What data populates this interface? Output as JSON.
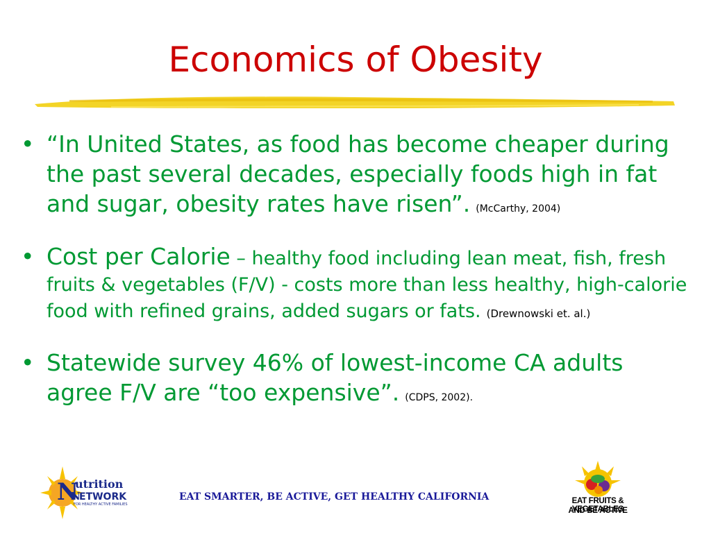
{
  "slide": {
    "title": "Economics of Obesity",
    "bullets": [
      {
        "text": "“In United States, as food has become cheaper during the past several decades, especially foods high in fat and sugar, obesity rates have risen”.",
        "citation": "(McCarthy, 2004)"
      },
      {
        "lead": "Cost per Calorie",
        "text": "– healthy food including lean meat, fish, fresh fruits & vegetables (F/V) - costs more than less healthy, high-calorie food with refined grains, added sugars or fats.",
        "citation": "(Drewnowski et. al.)"
      },
      {
        "text": "Statewide survey 46% of lowest-income CA adults agree F/V are “too expensive”.",
        "citation": "(CDPS, 2002)."
      }
    ],
    "bullet_symbol": "•"
  },
  "footer": {
    "tagline": "EAT SMARTER, BE ACTIVE, GET HEALTHY CALIFORNIA",
    "left_logo": {
      "name": "network-for-healthy-active-families-logo",
      "line1": "utrition",
      "line2": "ETWORK",
      "line3": "FOR HEALTHY ACTIVE FAMILIES",
      "initial1": "N",
      "initial2": "N"
    },
    "right_logo": {
      "name": "eat-fruits-vegetables-logo",
      "line1": "EAT FRUITS & VEGETABLES",
      "line2": "AND BE ACTIVE"
    }
  },
  "colors": {
    "title": "#cc0000",
    "body": "#009933",
    "citation": "#000000",
    "underline": "#f2d21b",
    "tagline": "#1a1a99"
  }
}
